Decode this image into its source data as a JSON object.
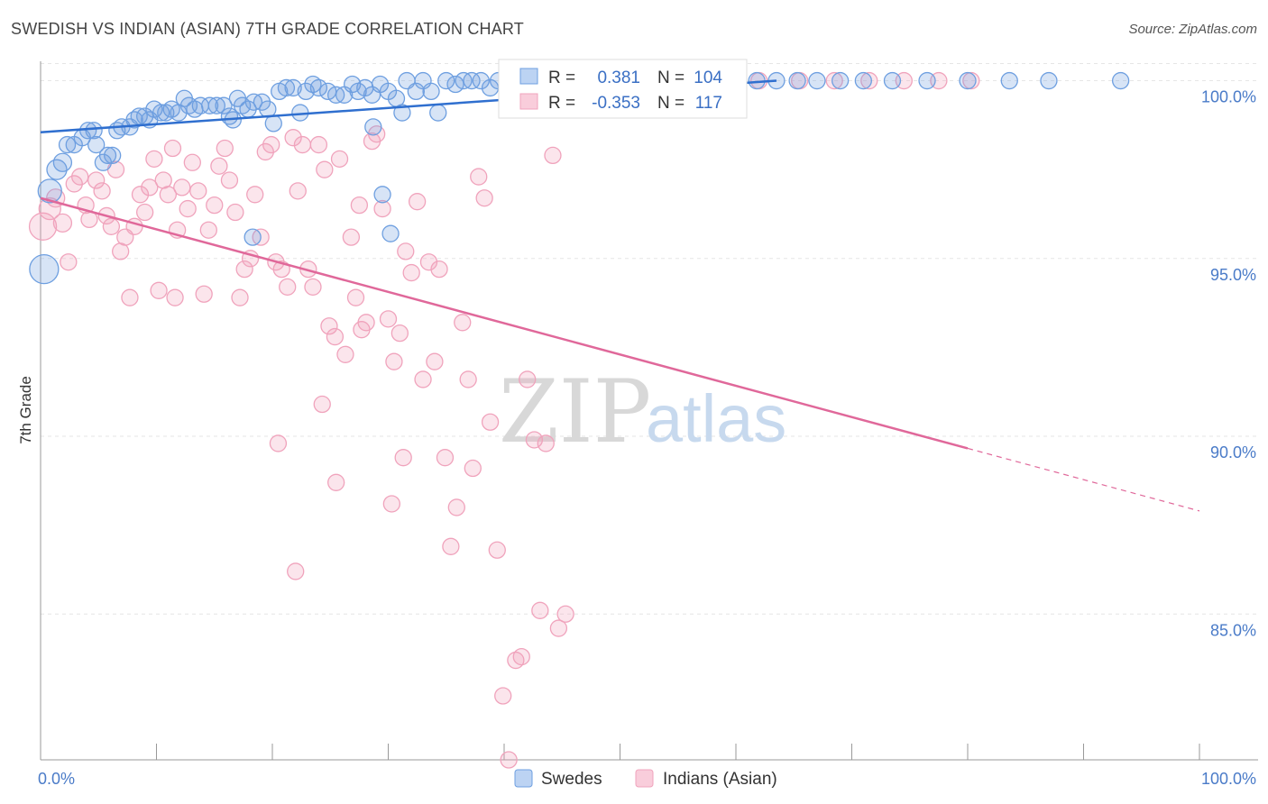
{
  "title": "SWEDISH VS INDIAN (ASIAN) 7TH GRADE CORRELATION CHART",
  "source": "Source: ZipAtlas.com",
  "watermark": {
    "zip": "ZIP",
    "atlas": "atlas"
  },
  "colors": {
    "blue": "#6e9fe0",
    "blue_line": "#2f6fcf",
    "pink": "#f0a3bc",
    "pink_line": "#e0689a",
    "label": "#4a7bc8"
  },
  "chart_data": {
    "type": "scatter",
    "ylabel": "7th Grade",
    "xlim": [
      0,
      100
    ],
    "ylim": [
      80.9,
      100.8
    ],
    "x_tick_labels": {
      "left": "0.0%",
      "right": "100.0%"
    },
    "y_ticks": [
      {
        "value": 100,
        "label": "100.0%"
      },
      {
        "value": 95,
        "label": "95.0%"
      },
      {
        "value": 90,
        "label": "90.0%"
      },
      {
        "value": 85,
        "label": "85.0%"
      }
    ],
    "legend": {
      "r_label": "R =",
      "n_label": "N =",
      "rows": [
        {
          "name": "Swedes",
          "r": "0.381",
          "n": "104",
          "color": "#6e9fe0"
        },
        {
          "name": "Indians (Asian)",
          "r": "-0.353",
          "n": "117",
          "color": "#f0a3bc"
        }
      ]
    },
    "series": [
      {
        "name": "Swedes",
        "trend": {
          "x0": 0,
          "y0": 98.55,
          "x1": 63.5,
          "y1": 100.0
        },
        "points": [
          [
            0.3,
            94.7,
            16
          ],
          [
            0.8,
            96.9,
            13
          ],
          [
            1.4,
            97.5,
            11
          ],
          [
            1.9,
            97.7,
            10
          ],
          [
            2.3,
            98.2,
            9
          ],
          [
            2.9,
            98.2,
            9
          ],
          [
            3.6,
            98.4,
            9
          ],
          [
            4.1,
            98.6,
            9
          ],
          [
            4.6,
            98.6,
            9
          ],
          [
            4.8,
            98.2,
            9
          ],
          [
            5.4,
            97.7,
            9
          ],
          [
            5.8,
            97.9,
            9
          ],
          [
            6.2,
            97.9,
            9
          ],
          [
            6.6,
            98.6,
            9
          ],
          [
            7.0,
            98.7,
            9
          ],
          [
            7.7,
            98.7,
            9
          ],
          [
            8.1,
            98.9,
            9
          ],
          [
            8.5,
            99.0,
            9
          ],
          [
            9.0,
            99.0,
            9
          ],
          [
            9.4,
            98.9,
            9
          ],
          [
            9.8,
            99.2,
            9
          ],
          [
            10.4,
            99.1,
            9
          ],
          [
            10.8,
            99.1,
            9
          ],
          [
            11.3,
            99.2,
            9
          ],
          [
            11.9,
            99.1,
            9
          ],
          [
            12.4,
            99.5,
            9
          ],
          [
            12.8,
            99.3,
            9
          ],
          [
            13.3,
            99.2,
            9
          ],
          [
            13.8,
            99.3,
            9
          ],
          [
            14.6,
            99.3,
            9
          ],
          [
            15.2,
            99.3,
            9
          ],
          [
            15.8,
            99.3,
            9
          ],
          [
            16.3,
            99.0,
            9
          ],
          [
            16.6,
            98.9,
            9
          ],
          [
            17.0,
            99.5,
            9
          ],
          [
            17.4,
            99.3,
            9
          ],
          [
            17.9,
            99.2,
            9
          ],
          [
            18.4,
            99.4,
            9
          ],
          [
            19.1,
            99.4,
            9
          ],
          [
            19.6,
            99.2,
            9
          ],
          [
            20.1,
            98.8,
            9
          ],
          [
            20.6,
            99.7,
            9
          ],
          [
            21.2,
            99.8,
            9
          ],
          [
            21.8,
            99.8,
            9
          ],
          [
            22.4,
            99.1,
            9
          ],
          [
            22.9,
            99.7,
            9
          ],
          [
            23.5,
            99.9,
            9
          ],
          [
            24.0,
            99.8,
            9
          ],
          [
            24.8,
            99.7,
            9
          ],
          [
            25.5,
            99.6,
            9
          ],
          [
            26.2,
            99.6,
            9
          ],
          [
            26.9,
            99.9,
            9
          ],
          [
            27.4,
            99.7,
            9
          ],
          [
            28.0,
            99.8,
            9
          ],
          [
            28.6,
            99.6,
            9
          ],
          [
            29.3,
            99.9,
            9
          ],
          [
            30.0,
            99.7,
            9
          ],
          [
            30.7,
            99.5,
            9
          ],
          [
            31.2,
            99.1,
            9
          ],
          [
            31.6,
            100.0,
            9
          ],
          [
            32.4,
            99.7,
            9
          ],
          [
            33.0,
            100.0,
            9
          ],
          [
            33.7,
            99.7,
            9
          ],
          [
            34.3,
            99.1,
            9
          ],
          [
            35.0,
            100.0,
            9
          ],
          [
            35.8,
            99.9,
            9
          ],
          [
            36.5,
            100.0,
            9
          ],
          [
            37.2,
            100.0,
            9
          ],
          [
            38.0,
            100.0,
            9
          ],
          [
            38.8,
            99.8,
            9
          ],
          [
            39.5,
            100.0,
            9
          ],
          [
            40.3,
            100.0,
            9
          ],
          [
            41.2,
            100.0,
            9
          ],
          [
            42.0,
            100.0,
            9
          ],
          [
            42.9,
            100.0,
            9
          ],
          [
            43.8,
            100.0,
            9
          ],
          [
            44.8,
            100.0,
            9
          ],
          [
            45.8,
            100.0,
            9
          ],
          [
            47.0,
            100.0,
            9
          ],
          [
            48.2,
            100.0,
            9
          ],
          [
            49.5,
            100.0,
            9
          ],
          [
            50.8,
            100.0,
            9
          ],
          [
            52.2,
            100.0,
            9
          ],
          [
            53.6,
            100.0,
            9
          ],
          [
            55.1,
            100.0,
            9
          ],
          [
            56.7,
            100.0,
            9
          ],
          [
            58.3,
            100.0,
            9
          ],
          [
            60.0,
            100.0,
            9
          ],
          [
            61.8,
            100.0,
            9
          ],
          [
            63.5,
            100.0,
            9
          ],
          [
            65.3,
            100.0,
            9
          ],
          [
            67.0,
            100.0,
            9
          ],
          [
            69.0,
            100.0,
            9
          ],
          [
            71.0,
            100.0,
            9
          ],
          [
            73.5,
            100.0,
            9
          ],
          [
            76.5,
            100.0,
            9
          ],
          [
            80.0,
            100.0,
            9
          ],
          [
            83.6,
            100.0,
            9
          ],
          [
            87.0,
            100.0,
            9
          ],
          [
            93.2,
            100.0,
            9
          ],
          [
            18.3,
            95.6,
            9
          ],
          [
            28.7,
            98.7,
            9
          ],
          [
            29.5,
            96.8,
            9
          ],
          [
            30.2,
            95.7,
            9
          ]
        ]
      },
      {
        "name": "Indians (Asian)",
        "trend": {
          "x0": 0,
          "y0": 96.7,
          "x1": 100,
          "y1": 87.9,
          "solid_until": 80
        },
        "points": [
          [
            0.2,
            95.9,
            15
          ],
          [
            0.8,
            96.4,
            12
          ],
          [
            1.3,
            96.7,
            10
          ],
          [
            1.9,
            96.0,
            10
          ],
          [
            2.4,
            94.9,
            9
          ],
          [
            2.9,
            97.1,
            9
          ],
          [
            3.4,
            97.3,
            9
          ],
          [
            3.9,
            96.5,
            9
          ],
          [
            4.2,
            96.1,
            9
          ],
          [
            4.8,
            97.2,
            9
          ],
          [
            5.3,
            96.9,
            9
          ],
          [
            5.7,
            96.2,
            9
          ],
          [
            6.1,
            95.9,
            9
          ],
          [
            6.5,
            97.5,
            9
          ],
          [
            6.9,
            95.2,
            9
          ],
          [
            7.3,
            95.6,
            9
          ],
          [
            7.7,
            93.9,
            9
          ],
          [
            8.1,
            95.9,
            9
          ],
          [
            8.6,
            96.8,
            9
          ],
          [
            9.0,
            96.3,
            9
          ],
          [
            9.4,
            97.0,
            9
          ],
          [
            9.8,
            97.8,
            9
          ],
          [
            10.2,
            94.1,
            9
          ],
          [
            10.6,
            97.2,
            9
          ],
          [
            11.0,
            96.8,
            9
          ],
          [
            11.4,
            98.1,
            9
          ],
          [
            11.8,
            95.8,
            9
          ],
          [
            12.2,
            97.0,
            9
          ],
          [
            12.7,
            96.4,
            9
          ],
          [
            13.1,
            97.7,
            9
          ],
          [
            13.6,
            96.9,
            9
          ],
          [
            14.1,
            94.0,
            9
          ],
          [
            14.5,
            95.8,
            9
          ],
          [
            15.0,
            96.5,
            9
          ],
          [
            15.4,
            97.6,
            9
          ],
          [
            15.9,
            98.1,
            9
          ],
          [
            16.3,
            97.2,
            9
          ],
          [
            16.8,
            96.3,
            9
          ],
          [
            17.2,
            93.9,
            9
          ],
          [
            17.6,
            94.7,
            9
          ],
          [
            18.1,
            95.0,
            9
          ],
          [
            18.5,
            96.8,
            9
          ],
          [
            19.0,
            95.6,
            9
          ],
          [
            19.4,
            98.0,
            9
          ],
          [
            19.9,
            98.2,
            9
          ],
          [
            20.3,
            94.9,
            9
          ],
          [
            20.8,
            94.7,
            9
          ],
          [
            21.3,
            94.2,
            9
          ],
          [
            21.8,
            98.4,
            9
          ],
          [
            22.2,
            96.9,
            9
          ],
          [
            22.6,
            98.2,
            9
          ],
          [
            23.1,
            94.7,
            9
          ],
          [
            23.5,
            94.2,
            9
          ],
          [
            24.0,
            98.2,
            9
          ],
          [
            24.5,
            97.5,
            9
          ],
          [
            24.9,
            93.1,
            9
          ],
          [
            25.4,
            92.8,
            9
          ],
          [
            25.8,
            97.8,
            9
          ],
          [
            26.3,
            92.3,
            9
          ],
          [
            26.8,
            95.6,
            9
          ],
          [
            27.2,
            93.9,
            9
          ],
          [
            27.7,
            93.0,
            9
          ],
          [
            28.1,
            93.2,
            9
          ],
          [
            28.6,
            98.3,
            9
          ],
          [
            29.0,
            98.5,
            9
          ],
          [
            29.5,
            96.4,
            9
          ],
          [
            30.0,
            93.3,
            9
          ],
          [
            30.5,
            92.1,
            9
          ],
          [
            31.0,
            92.9,
            9
          ],
          [
            31.5,
            95.2,
            9
          ],
          [
            32.0,
            94.6,
            9
          ],
          [
            32.5,
            96.6,
            9
          ],
          [
            33.0,
            91.6,
            9
          ],
          [
            33.5,
            94.9,
            9
          ],
          [
            34.0,
            92.1,
            9
          ],
          [
            34.4,
            94.7,
            9
          ],
          [
            34.9,
            89.4,
            9
          ],
          [
            35.4,
            86.9,
            9
          ],
          [
            35.9,
            88.0,
            9
          ],
          [
            36.4,
            93.2,
            9
          ],
          [
            36.9,
            91.6,
            9
          ],
          [
            37.3,
            89.1,
            9
          ],
          [
            37.8,
            97.3,
            9
          ],
          [
            38.3,
            96.7,
            9
          ],
          [
            38.8,
            90.4,
            9
          ],
          [
            39.4,
            86.8,
            9
          ],
          [
            39.9,
            82.7,
            9
          ],
          [
            40.4,
            80.9,
            9
          ],
          [
            41.0,
            83.7,
            9
          ],
          [
            41.5,
            83.8,
            9
          ],
          [
            42.0,
            91.6,
            9
          ],
          [
            42.6,
            89.9,
            9
          ],
          [
            43.1,
            85.1,
            9
          ],
          [
            43.6,
            89.8,
            9
          ],
          [
            44.2,
            97.9,
            9
          ],
          [
            44.7,
            84.6,
            9
          ],
          [
            45.3,
            85.0,
            9
          ],
          [
            46.0,
            100.0,
            9
          ],
          [
            49.0,
            100.0,
            9
          ],
          [
            52.0,
            100.0,
            9
          ],
          [
            55.5,
            100.0,
            9
          ],
          [
            58.5,
            100.0,
            9
          ],
          [
            62.0,
            100.0,
            9
          ],
          [
            65.5,
            100.0,
            9
          ],
          [
            68.5,
            100.0,
            9
          ],
          [
            71.5,
            100.0,
            9
          ],
          [
            74.5,
            100.0,
            9
          ],
          [
            77.5,
            100.0,
            9
          ],
          [
            80.3,
            100.0,
            9
          ],
          [
            27.5,
            96.5,
            9
          ],
          [
            20.5,
            89.8,
            9
          ],
          [
            24.3,
            90.9,
            9
          ],
          [
            22.0,
            86.2,
            9
          ],
          [
            25.5,
            88.7,
            9
          ],
          [
            30.3,
            88.1,
            9
          ],
          [
            31.3,
            89.4,
            9
          ],
          [
            11.6,
            93.9,
            9
          ]
        ]
      }
    ]
  }
}
